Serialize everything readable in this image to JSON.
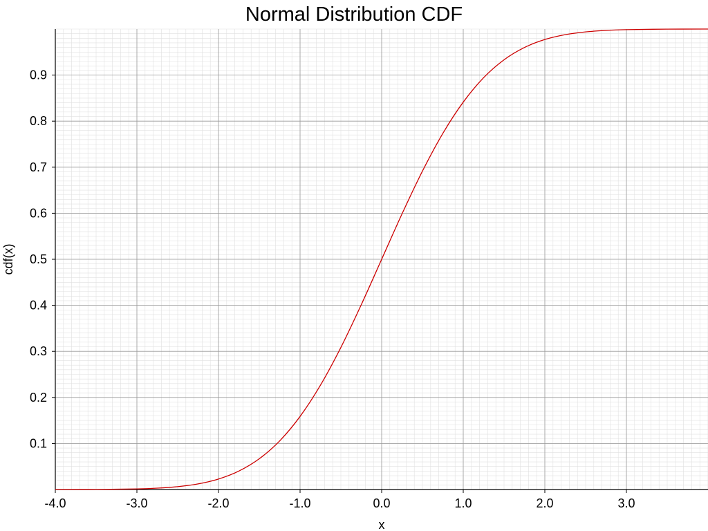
{
  "chart_data": {
    "type": "line",
    "title": "Normal Distribution CDF",
    "xlabel": "x",
    "ylabel": "cdf(x)",
    "xlim": [
      -4.0,
      4.0
    ],
    "ylim": [
      0.0,
      1.0
    ],
    "x_ticks": [
      -4.0,
      -3.0,
      -2.0,
      -1.0,
      0.0,
      1.0,
      2.0,
      3.0
    ],
    "x_tick_labels": [
      "-4.0",
      "-3.0",
      "-2.0",
      "-1.0",
      "0.0",
      "1.0",
      "2.0",
      "3.0"
    ],
    "y_ticks": [
      0.1,
      0.2,
      0.3,
      0.4,
      0.5,
      0.6,
      0.7,
      0.8,
      0.9
    ],
    "y_tick_labels": [
      "0.1",
      "0.2",
      "0.3",
      "0.4",
      "0.5",
      "0.6",
      "0.7",
      "0.8",
      "0.9"
    ],
    "grid": true,
    "minor_grid_subdivisions": 10,
    "colors": {
      "series": "#cc0000",
      "major_grid": "#999999",
      "minor_grid": "#e0e0e0",
      "axis": "#000000"
    },
    "series": [
      {
        "x": [
          -4.0,
          -3.5,
          -3.0,
          -2.75,
          -2.5,
          -2.25,
          -2.0,
          -1.75,
          -1.5,
          -1.25,
          -1.0,
          -0.75,
          -0.5,
          -0.25,
          0.0,
          0.25,
          0.5,
          0.75,
          1.0,
          1.25,
          1.5,
          1.75,
          2.0,
          2.25,
          2.5,
          2.75,
          3.0,
          3.5,
          4.0
        ],
        "y": [
          3e-05,
          0.0002,
          0.0013,
          0.003,
          0.0062,
          0.0122,
          0.0228,
          0.0401,
          0.0668,
          0.1056,
          0.1587,
          0.2266,
          0.3085,
          0.4013,
          0.5,
          0.5987,
          0.6915,
          0.7734,
          0.8413,
          0.8944,
          0.9332,
          0.9599,
          0.9772,
          0.9878,
          0.9938,
          0.997,
          0.9987,
          0.9998,
          0.99997
        ]
      }
    ]
  }
}
